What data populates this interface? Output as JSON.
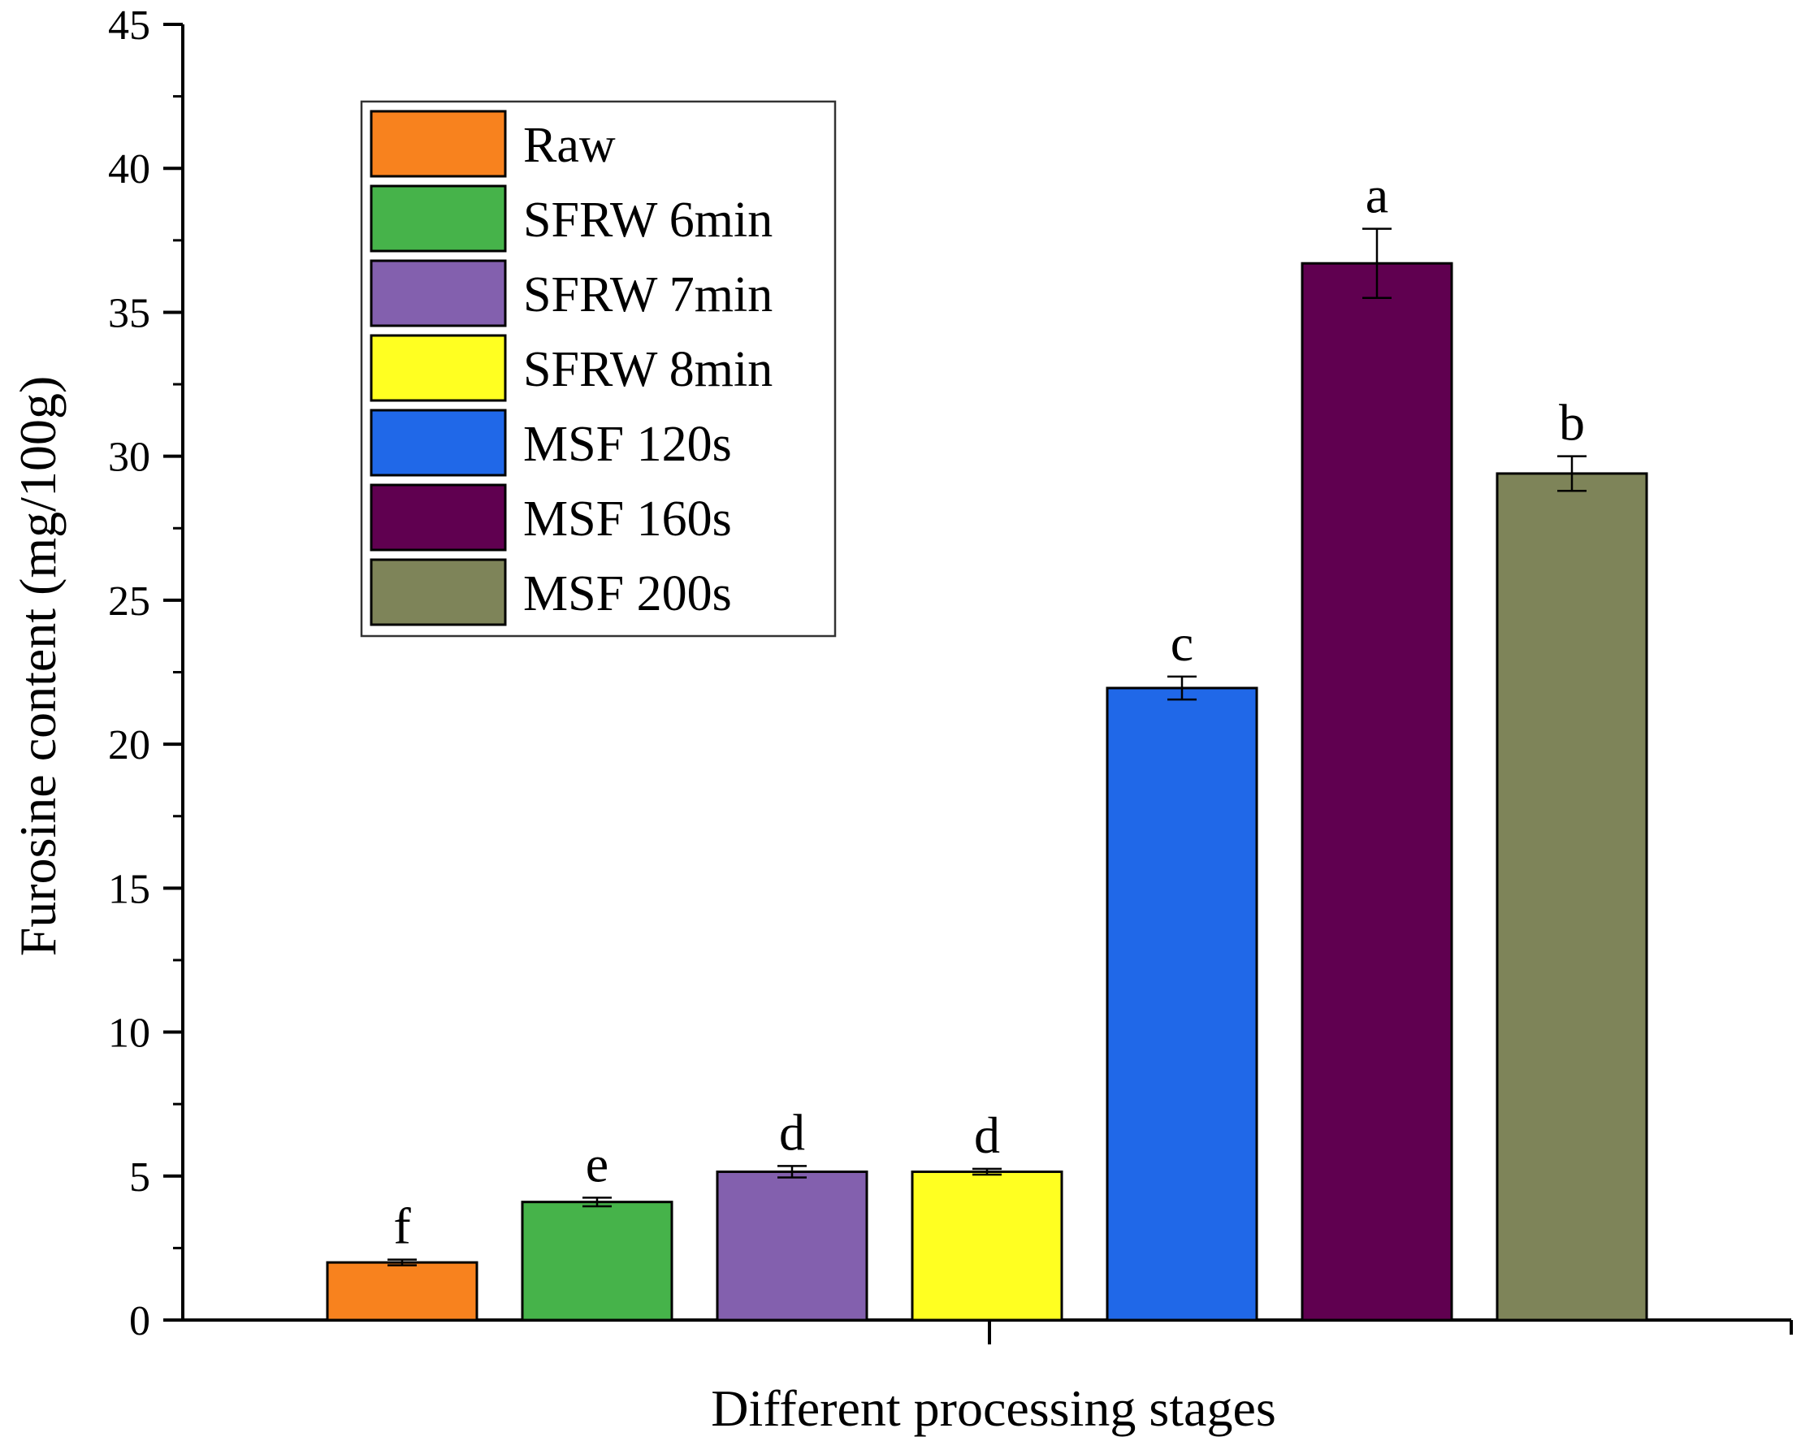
{
  "chart_data": {
    "type": "bar",
    "title": "",
    "xlabel": "Different processing stages",
    "ylabel": "Furosine content (mg/100g)",
    "ylim": [
      0,
      45
    ],
    "yticks": [
      0,
      5,
      10,
      15,
      20,
      25,
      30,
      35,
      40,
      45
    ],
    "grid": false,
    "legend_position": "top-left",
    "categories": [
      "Raw",
      "SFRW 6min",
      "SFRW 7min",
      "SFRW 8min",
      "MSF 120s",
      "MSF 160s",
      "MSF 200s"
    ],
    "values": [
      2.0,
      4.1,
      5.15,
      5.15,
      21.95,
      36.7,
      29.4
    ],
    "errors": [
      0.1,
      0.15,
      0.2,
      0.1,
      0.4,
      1.2,
      0.6
    ],
    "significance_labels": [
      "f",
      "e",
      "d",
      "d",
      "c",
      "a",
      "b"
    ],
    "colors": [
      "#F8821E",
      "#46B34A",
      "#8360AE",
      "#FFFF21",
      "#2068E8",
      "#600050",
      "#7E8459"
    ]
  }
}
